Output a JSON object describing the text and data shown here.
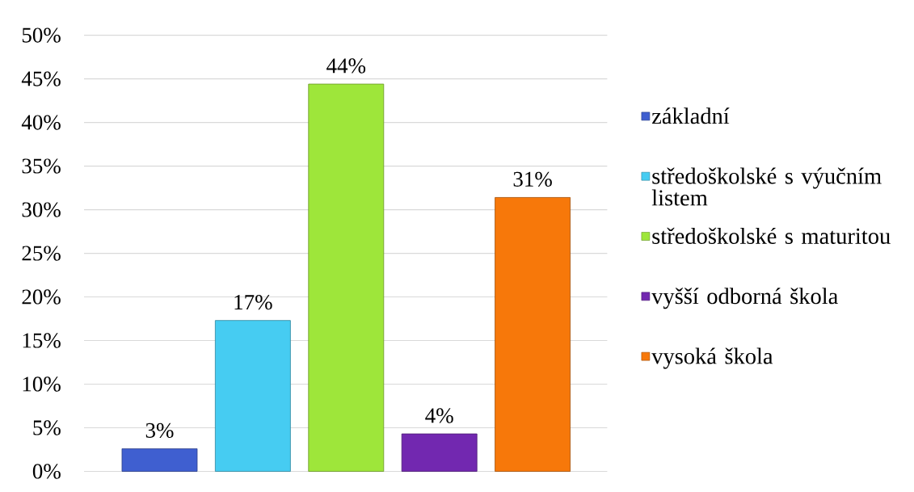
{
  "chart_data": {
    "type": "bar",
    "categories": [
      null,
      null,
      null,
      null,
      null
    ],
    "series": [
      {
        "name": "základní",
        "color": "#3f5fd0",
        "values": [
          2.6,
          null,
          null,
          null,
          null
        ],
        "value_labels": [
          "3%",
          null,
          null,
          null,
          null
        ]
      },
      {
        "name": "středoškolské s výučním listem",
        "color": "#46ccf2",
        "values": [
          null,
          17.3,
          null,
          null,
          null
        ],
        "value_labels": [
          null,
          "17%",
          null,
          null,
          null
        ]
      },
      {
        "name": "středoškolské s maturitou",
        "color": "#9ee63a",
        "values": [
          null,
          null,
          44.4,
          null,
          null
        ],
        "value_labels": [
          null,
          null,
          "44%",
          null,
          null
        ]
      },
      {
        "name": "vyšší odborná škola",
        "color": "#7228b0",
        "values": [
          null,
          null,
          null,
          4.3,
          null
        ],
        "value_labels": [
          null,
          null,
          null,
          "4%",
          null
        ]
      },
      {
        "name": "vysoká škola",
        "color": "#f7780a",
        "values": [
          null,
          null,
          null,
          null,
          31.4
        ],
        "value_labels": [
          null,
          null,
          null,
          null,
          "31%"
        ]
      }
    ],
    "ylim": [
      0,
      50
    ],
    "yticks": [
      {
        "value": 0,
        "label": "0%"
      },
      {
        "value": 5,
        "label": "5%"
      },
      {
        "value": 10,
        "label": "10%"
      },
      {
        "value": 15,
        "label": "15%"
      },
      {
        "value": 20,
        "label": "20%"
      },
      {
        "value": 25,
        "label": "25%"
      },
      {
        "value": 30,
        "label": "30%"
      },
      {
        "value": 35,
        "label": "35%"
      },
      {
        "value": 40,
        "label": "40%"
      },
      {
        "value": 45,
        "label": "45%"
      },
      {
        "value": 50,
        "label": "50%"
      }
    ],
    "grid": "y",
    "legend": "right",
    "tick_labels": "y"
  }
}
